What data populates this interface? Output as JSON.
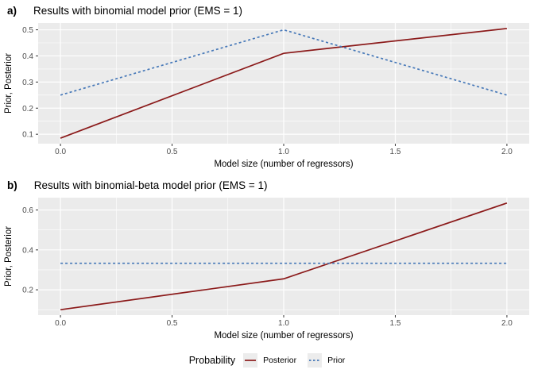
{
  "chart_data": [
    {
      "type": "line",
      "tag": "a)",
      "title": "Results with binomial model prior (EMS = 1)",
      "xlabel": "Model size (number of regressors)",
      "ylabel": "Prior, Posterior",
      "x": [
        0,
        1,
        2
      ],
      "series": [
        {
          "name": "Posterior",
          "values": [
            0.085,
            0.41,
            0.505
          ],
          "color": "#8B1A1A",
          "linetype": "solid"
        },
        {
          "name": "Prior",
          "values": [
            0.25,
            0.5,
            0.25
          ],
          "color": "#4678B8",
          "linetype": "dashed"
        }
      ],
      "xlim": [
        -0.1,
        2.1
      ],
      "ylim": [
        0.064,
        0.526
      ],
      "x_ticks": {
        "values": [
          0,
          0.5,
          1,
          1.5,
          2
        ],
        "labels": [
          "0.0",
          "0.5",
          "1.0",
          "1.5",
          "2.0"
        ],
        "minor": [
          0.25,
          0.75,
          1.25,
          1.75
        ]
      },
      "y_ticks": {
        "values": [
          0.1,
          0.2,
          0.3,
          0.4,
          0.5
        ],
        "labels": [
          "0.1",
          "0.2",
          "0.3",
          "0.4",
          "0.5"
        ],
        "minor": [
          0.15,
          0.25,
          0.35,
          0.45
        ]
      },
      "grid": true,
      "legend_position": "shared-bottom"
    },
    {
      "type": "line",
      "tag": "b)",
      "title": "Results with binomial-beta model prior (EMS = 1)",
      "xlabel": "Model size (number of regressors)",
      "ylabel": "Prior, Posterior",
      "x": [
        0,
        1,
        2
      ],
      "series": [
        {
          "name": "Posterior",
          "values": [
            0.1,
            0.255,
            0.635
          ],
          "color": "#8B1A1A",
          "linetype": "solid"
        },
        {
          "name": "Prior",
          "values": [
            0.333,
            0.333,
            0.333
          ],
          "color": "#4678B8",
          "linetype": "dashed"
        }
      ],
      "xlim": [
        -0.1,
        2.1
      ],
      "ylim": [
        0.073,
        0.662
      ],
      "x_ticks": {
        "values": [
          0,
          0.5,
          1,
          1.5,
          2
        ],
        "labels": [
          "0.0",
          "0.5",
          "1.0",
          "1.5",
          "2.0"
        ],
        "minor": [
          0.25,
          0.75,
          1.25,
          1.75
        ]
      },
      "y_ticks": {
        "values": [
          0.2,
          0.4,
          0.6
        ],
        "labels": [
          "0.2",
          "0.4",
          "0.6"
        ],
        "minor": [
          0.1,
          0.3,
          0.5
        ]
      },
      "grid": true,
      "legend_position": "shared-bottom"
    }
  ],
  "legend": {
    "title": "Probability",
    "items": [
      {
        "label": "Posterior",
        "color": "#8B1A1A",
        "linetype": "solid"
      },
      {
        "label": "Prior",
        "color": "#4678B8",
        "linetype": "dashed"
      }
    ]
  },
  "style": {
    "page_background": "#FFFFFF",
    "panel_background": "#EBEBEB",
    "grid_color": "#FFFFFF",
    "tick_mark_color": "#333333",
    "tick_label_color": "#4D4D4D",
    "axis_title_color": "#000000",
    "legend_key_background": "#ECECEC"
  }
}
